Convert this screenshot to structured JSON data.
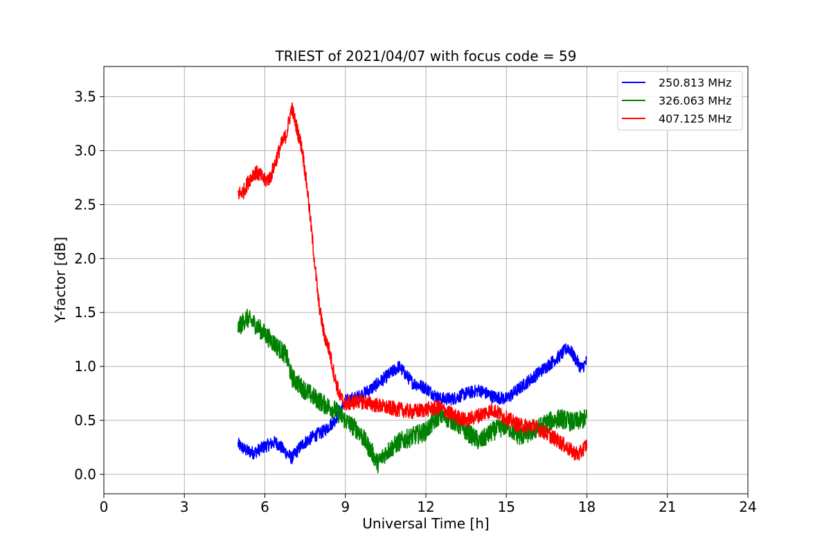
{
  "chart_data": {
    "type": "line",
    "title": "TRIEST of 2021/04/07 with focus code = 59",
    "xlabel": "Universal Time [h]",
    "ylabel": "Y-factor [dB]",
    "xlim": [
      0,
      24
    ],
    "ylim": [
      -0.18,
      3.78
    ],
    "xticks": [
      0,
      3,
      6,
      9,
      12,
      15,
      18,
      21,
      24
    ],
    "yticks": [
      0.0,
      0.5,
      1.0,
      1.5,
      2.0,
      2.5,
      3.0,
      3.5
    ],
    "xtick_labels": [
      "0",
      "3",
      "6",
      "9",
      "12",
      "15",
      "18",
      "21",
      "24"
    ],
    "ytick_labels": [
      "0.0",
      "0.5",
      "1.0",
      "1.5",
      "2.0",
      "2.5",
      "3.0",
      "3.5"
    ],
    "grid": true,
    "legend_position": "top-right",
    "series": [
      {
        "name": "250.813 MHz",
        "color": "#0000ff",
        "noise": 0.06,
        "x": [
          5.0,
          5.3,
          5.6,
          6.0,
          6.4,
          6.8,
          7.0,
          7.4,
          7.8,
          8.2,
          8.6,
          9.0,
          9.5,
          10.0,
          10.5,
          11.0,
          11.5,
          12.0,
          12.5,
          13.0,
          13.5,
          14.0,
          14.5,
          15.0,
          15.5,
          16.0,
          16.5,
          17.0,
          17.3,
          17.5,
          17.8,
          18.0
        ],
        "y": [
          0.28,
          0.22,
          0.2,
          0.26,
          0.3,
          0.2,
          0.15,
          0.28,
          0.35,
          0.4,
          0.5,
          0.68,
          0.72,
          0.8,
          0.9,
          1.0,
          0.85,
          0.8,
          0.7,
          0.7,
          0.75,
          0.78,
          0.72,
          0.7,
          0.8,
          0.9,
          1.0,
          1.1,
          1.18,
          1.1,
          0.98,
          1.05
        ]
      },
      {
        "name": "326.063 MHz",
        "color": "#008000",
        "noise": 0.09,
        "x": [
          5.0,
          5.3,
          5.6,
          6.0,
          6.4,
          6.8,
          7.0,
          7.4,
          7.8,
          8.2,
          8.6,
          9.0,
          9.5,
          10.0,
          10.2,
          10.5,
          11.0,
          11.5,
          12.0,
          12.5,
          13.0,
          13.5,
          14.0,
          14.5,
          15.0,
          15.5,
          16.0,
          16.5,
          17.0,
          17.5,
          18.0
        ],
        "y": [
          1.35,
          1.45,
          1.4,
          1.3,
          1.2,
          1.1,
          0.9,
          0.8,
          0.72,
          0.65,
          0.6,
          0.5,
          0.4,
          0.2,
          0.1,
          0.2,
          0.3,
          0.35,
          0.4,
          0.55,
          0.5,
          0.4,
          0.3,
          0.4,
          0.45,
          0.35,
          0.4,
          0.48,
          0.52,
          0.48,
          0.52
        ]
      },
      {
        "name": "407.125 MHz",
        "color": "#ff0000",
        "noise": 0.07,
        "x": [
          5.0,
          5.2,
          5.4,
          5.6,
          5.8,
          6.0,
          6.2,
          6.4,
          6.6,
          6.8,
          7.0,
          7.2,
          7.4,
          7.6,
          7.8,
          8.0,
          8.2,
          8.4,
          8.6,
          8.8,
          9.0,
          9.5,
          10.0,
          10.5,
          11.0,
          11.5,
          12.0,
          12.5,
          13.0,
          13.5,
          14.0,
          14.5,
          15.0,
          15.5,
          16.0,
          16.5,
          17.0,
          17.4,
          17.7,
          18.0
        ],
        "y": [
          2.6,
          2.62,
          2.72,
          2.8,
          2.78,
          2.72,
          2.75,
          2.9,
          3.05,
          3.15,
          3.4,
          3.2,
          3.0,
          2.6,
          2.1,
          1.6,
          1.3,
          1.15,
          0.9,
          0.72,
          0.65,
          0.68,
          0.65,
          0.62,
          0.6,
          0.58,
          0.6,
          0.62,
          0.55,
          0.5,
          0.55,
          0.6,
          0.52,
          0.45,
          0.45,
          0.38,
          0.3,
          0.22,
          0.18,
          0.28
        ]
      }
    ]
  }
}
